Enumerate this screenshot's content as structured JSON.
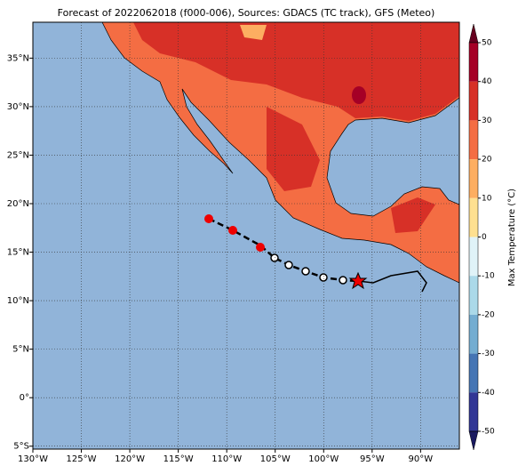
{
  "chart_data": {
    "type": "map",
    "title": "Forecast of 2022062018 (f000-006), Sources: GDACS (TC track), GFS (Meteo)",
    "xlim": [
      -130,
      -86
    ],
    "ylim": [
      -5.3,
      38.7
    ],
    "xticks": [
      {
        "value": -130,
        "label": "130°W"
      },
      {
        "value": -125,
        "label": "125°W"
      },
      {
        "value": -120,
        "label": "120°W"
      },
      {
        "value": -115,
        "label": "115°W"
      },
      {
        "value": -110,
        "label": "110°W"
      },
      {
        "value": -105,
        "label": "105°W"
      },
      {
        "value": -100,
        "label": "100°W"
      },
      {
        "value": -95,
        "label": "95°W"
      },
      {
        "value": -90,
        "label": "90°W"
      }
    ],
    "yticks": [
      {
        "value": -5,
        "label": "5°S"
      },
      {
        "value": 0,
        "label": "0°"
      },
      {
        "value": 5,
        "label": "5°N"
      },
      {
        "value": 10,
        "label": "10°N"
      },
      {
        "value": 15,
        "label": "15°N"
      },
      {
        "value": 20,
        "label": "20°N"
      },
      {
        "value": 25,
        "label": "25°N"
      },
      {
        "value": 30,
        "label": "30°N"
      },
      {
        "value": 35,
        "label": "35°N"
      }
    ],
    "grid": true,
    "colorbar": {
      "label": "Max Temperature (°C)",
      "lim": [
        -50,
        50
      ],
      "ticks": [
        50,
        40,
        30,
        20,
        10,
        0,
        -10,
        -20,
        -30,
        -40,
        -50
      ]
    }
  }
}
